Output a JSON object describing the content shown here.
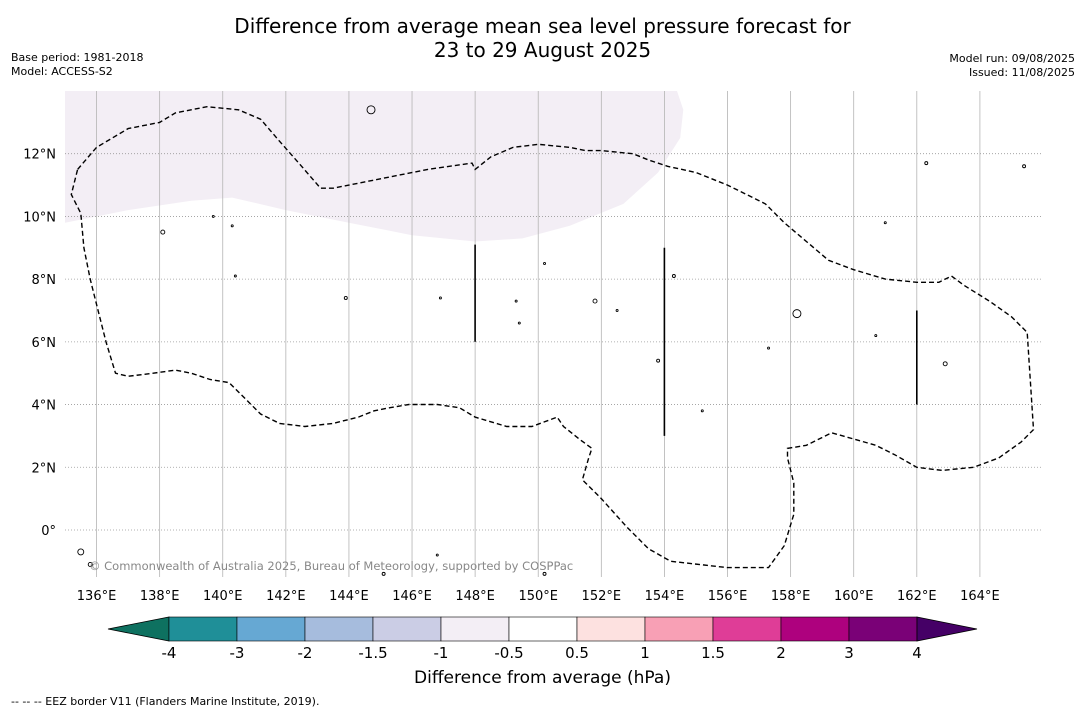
{
  "header": {
    "title_line1": "Difference from average mean sea level pressure forecast for",
    "title_line2": "23 to 29 August 2025",
    "base_period": "Base period: 1981-2018",
    "model": "Model: ACCESS-S2",
    "model_run": "Model run: 09/08/2025",
    "issued": "Issued: 11/08/2025"
  },
  "map": {
    "lon_range": [
      135,
      166
    ],
    "lat_range": [
      -1.5,
      14
    ],
    "lon_ticks": [
      {
        "value": 136,
        "label": "136°E"
      },
      {
        "value": 138,
        "label": "138°E"
      },
      {
        "value": 140,
        "label": "140°E"
      },
      {
        "value": 142,
        "label": "142°E"
      },
      {
        "value": 144,
        "label": "144°E"
      },
      {
        "value": 146,
        "label": "146°E"
      },
      {
        "value": 148,
        "label": "148°E"
      },
      {
        "value": 150,
        "label": "150°E"
      },
      {
        "value": 152,
        "label": "152°E"
      },
      {
        "value": 154,
        "label": "154°E"
      },
      {
        "value": 156,
        "label": "156°E"
      },
      {
        "value": 158,
        "label": "158°E"
      },
      {
        "value": 160,
        "label": "160°E"
      },
      {
        "value": 162,
        "label": "162°E"
      },
      {
        "value": 164,
        "label": "164°E"
      }
    ],
    "lat_ticks": [
      {
        "value": 12,
        "label": "12°N"
      },
      {
        "value": 10,
        "label": "10°N"
      },
      {
        "value": 8,
        "label": "8°N"
      },
      {
        "value": 6,
        "label": "6°N"
      },
      {
        "value": 4,
        "label": "4°N"
      },
      {
        "value": 2,
        "label": "2°N"
      },
      {
        "value": 0,
        "label": "0°"
      }
    ],
    "copyright": "© Commonwealth of Australia 2025, Bureau of Meteorology, supported by COSPPac",
    "anomaly_region": {
      "category": "-1 to -0.5",
      "color": "#f3eef5",
      "polygon": [
        [
          135,
          9.8
        ],
        [
          137,
          10.2
        ],
        [
          139,
          10.5
        ],
        [
          140.3,
          10.6
        ],
        [
          142,
          10.2
        ],
        [
          144,
          9.8
        ],
        [
          146,
          9.4
        ],
        [
          148,
          9.2
        ],
        [
          149.5,
          9.3
        ],
        [
          151,
          9.7
        ],
        [
          152.7,
          10.4
        ],
        [
          153.8,
          11.4
        ],
        [
          154.5,
          12.5
        ],
        [
          154.6,
          13.4
        ],
        [
          154.4,
          14
        ],
        [
          135,
          14
        ]
      ]
    },
    "eez_boundary": [
      [
        135.4,
        11.5
      ],
      [
        136,
        12.2
      ],
      [
        137,
        12.8
      ],
      [
        138,
        13
      ],
      [
        138.5,
        13.3
      ],
      [
        139.5,
        13.5
      ],
      [
        140.5,
        13.4
      ],
      [
        141.2,
        13.1
      ],
      [
        141.8,
        12.4
      ],
      [
        142.5,
        11.6
      ],
      [
        143.1,
        10.9
      ],
      [
        143.5,
        10.9
      ],
      [
        145,
        11.2
      ],
      [
        146.5,
        11.5
      ],
      [
        147.9,
        11.7
      ],
      [
        148,
        11.5
      ],
      [
        148.5,
        11.9
      ],
      [
        149.2,
        12.2
      ],
      [
        150,
        12.3
      ],
      [
        151,
        12.2
      ],
      [
        151.5,
        12.1
      ],
      [
        152,
        12.1
      ],
      [
        153,
        12
      ],
      [
        153.5,
        11.8
      ],
      [
        154.1,
        11.6
      ],
      [
        155,
        11.4
      ],
      [
        156,
        11
      ],
      [
        157,
        10.5
      ],
      [
        157.2,
        10.4
      ],
      [
        157.8,
        9.8
      ],
      [
        158.5,
        9.2
      ],
      [
        159.2,
        8.6
      ],
      [
        160,
        8.3
      ],
      [
        161,
        8
      ],
      [
        162,
        7.9
      ],
      [
        162.7,
        7.9
      ],
      [
        163.1,
        8.1
      ],
      [
        163.5,
        7.8
      ],
      [
        164.3,
        7.3
      ],
      [
        165,
        6.8
      ],
      [
        165.5,
        6.3
      ],
      [
        165.7,
        3.2
      ],
      [
        165.3,
        2.8
      ],
      [
        164.6,
        2.3
      ],
      [
        163.8,
        2
      ],
      [
        162.8,
        1.9
      ],
      [
        162,
        2
      ],
      [
        161.3,
        2.4
      ],
      [
        160.7,
        2.7
      ],
      [
        160,
        2.9
      ],
      [
        159.3,
        3.1
      ],
      [
        158.5,
        2.7
      ],
      [
        157.9,
        2.6
      ],
      [
        157.9,
        2.3
      ],
      [
        158.1,
        1.5
      ],
      [
        158.1,
        0.5
      ],
      [
        157.8,
        -0.5
      ],
      [
        157.3,
        -1.2
      ],
      [
        156,
        -1.2
      ],
      [
        154.2,
        -1
      ],
      [
        153.5,
        -0.6
      ],
      [
        152.8,
        0.1
      ],
      [
        152,
        1
      ],
      [
        151.4,
        1.6
      ],
      [
        151.6,
        2.3
      ],
      [
        151.7,
        2.6
      ],
      [
        151.3,
        2.9
      ],
      [
        150.8,
        3.3
      ],
      [
        150.6,
        3.6
      ],
      [
        149.8,
        3.3
      ],
      [
        149,
        3.3
      ],
      [
        148,
        3.6
      ],
      [
        147.5,
        3.9
      ],
      [
        146.8,
        4
      ],
      [
        145.9,
        4
      ],
      [
        145.3,
        3.9
      ],
      [
        144.8,
        3.8
      ],
      [
        144.3,
        3.6
      ],
      [
        143.5,
        3.4
      ],
      [
        142.6,
        3.3
      ],
      [
        141.8,
        3.4
      ],
      [
        141.2,
        3.7
      ],
      [
        140.5,
        4.4
      ],
      [
        140.2,
        4.7
      ],
      [
        139.6,
        4.8
      ],
      [
        139,
        5
      ],
      [
        138.5,
        5.1
      ],
      [
        137.8,
        5
      ],
      [
        137,
        4.9
      ],
      [
        136.6,
        5
      ],
      [
        136.3,
        6
      ],
      [
        136,
        7.2
      ],
      [
        135.8,
        8
      ],
      [
        135.6,
        9
      ],
      [
        135.5,
        10.1
      ],
      [
        135.2,
        10.7
      ],
      [
        135.4,
        11.5
      ]
    ],
    "boundary_segments": [
      [
        [
          148,
          9.1
        ],
        [
          148,
          6
        ]
      ],
      [
        [
          154,
          9
        ],
        [
          154,
          3
        ]
      ],
      [
        [
          162,
          7
        ],
        [
          162,
          4
        ]
      ]
    ],
    "islands": [
      {
        "lon": 144.7,
        "lat": 13.4,
        "r": 4
      },
      {
        "lon": 138.1,
        "lat": 9.5,
        "r": 2
      },
      {
        "lon": 151.8,
        "lat": 7.3,
        "r": 2
      },
      {
        "lon": 158.2,
        "lat": 6.9,
        "r": 4
      },
      {
        "lon": 162.9,
        "lat": 5.3,
        "r": 2
      },
      {
        "lon": 154.3,
        "lat": 8.1,
        "r": 1.5
      },
      {
        "lon": 150.2,
        "lat": 8.5,
        "r": 1
      },
      {
        "lon": 149.3,
        "lat": 7.3,
        "r": 1
      },
      {
        "lon": 149.4,
        "lat": 6.6,
        "r": 1
      },
      {
        "lon": 146.9,
        "lat": 7.4,
        "r": 1
      },
      {
        "lon": 143.9,
        "lat": 7.4,
        "r": 1.5
      },
      {
        "lon": 140.4,
        "lat": 8.1,
        "r": 1
      },
      {
        "lon": 140.3,
        "lat": 9.7,
        "r": 1
      },
      {
        "lon": 139.7,
        "lat": 10,
        "r": 1
      },
      {
        "lon": 153.8,
        "lat": 5.4,
        "r": 1.5
      },
      {
        "lon": 157.3,
        "lat": 5.8,
        "r": 1
      },
      {
        "lon": 160.7,
        "lat": 6.2,
        "r": 1
      },
      {
        "lon": 161,
        "lat": 9.8,
        "r": 1
      },
      {
        "lon": 152.5,
        "lat": 7,
        "r": 1
      },
      {
        "lon": 155.2,
        "lat": 3.8,
        "r": 1
      },
      {
        "lon": 162.3,
        "lat": 11.7,
        "r": 1.5
      },
      {
        "lon": 165.4,
        "lat": 11.6,
        "r": 1.5
      },
      {
        "lon": 135.5,
        "lat": -0.7,
        "r": 3
      },
      {
        "lon": 135.8,
        "lat": -1.1,
        "r": 2
      },
      {
        "lon": 145.1,
        "lat": -1.4,
        "r": 1.5
      },
      {
        "lon": 146.8,
        "lat": -0.8,
        "r": 1
      },
      {
        "lon": 150.2,
        "lat": -1.4,
        "r": 1.5
      }
    ]
  },
  "colorbar": {
    "title": "Difference from average (hPa)",
    "low_extend_color": "#0e7160",
    "high_extend_color": "#450066",
    "bins": [
      {
        "color": "#1f8f98"
      },
      {
        "color": "#66a8d3"
      },
      {
        "color": "#a6bcdd"
      },
      {
        "color": "#cbcde5"
      },
      {
        "color": "#f3eef5"
      },
      {
        "color": "#ffffff"
      },
      {
        "color": "#fde1e0"
      },
      {
        "color": "#f8a0b5"
      },
      {
        "color": "#df3d97"
      },
      {
        "color": "#ae017e"
      },
      {
        "color": "#7a0177"
      }
    ],
    "tick_labels": [
      "-4",
      "-3",
      "-2",
      "-1.5",
      "-1",
      "-0.5",
      "0.5",
      "1",
      "1.5",
      "2",
      "3",
      "4"
    ]
  },
  "footer": {
    "legend_text": "--  --  -- EEZ border V11 (Flanders Marine Institute, 2019)."
  }
}
